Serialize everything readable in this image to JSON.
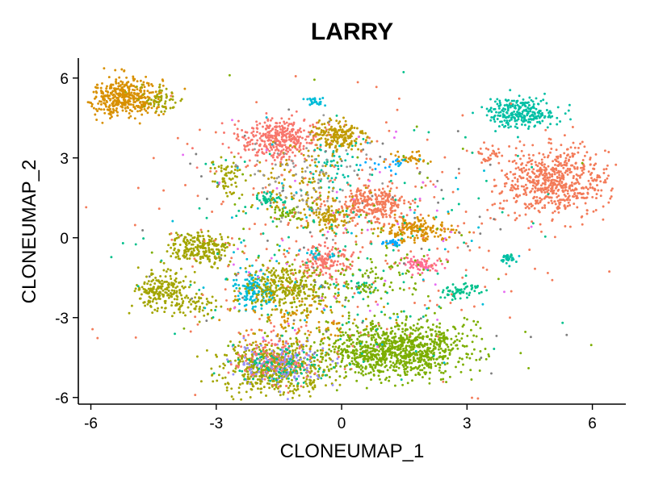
{
  "chart_data": {
    "type": "scatter",
    "title": "LARRY",
    "xlabel": "CLONEUMAP_1",
    "ylabel": "CLONEUMAP_2",
    "xlim": [
      -6.3,
      6.8
    ],
    "ylim": [
      -6.25,
      6.75
    ],
    "xticks": [
      -6,
      -3,
      0,
      3,
      6
    ],
    "yticks": [
      -6,
      -3,
      0,
      3,
      6
    ],
    "xtick_labels": [
      "-6",
      "-3",
      "0",
      "3",
      "6"
    ],
    "ytick_labels": [
      "-6",
      "-3",
      "0",
      "3",
      "6"
    ],
    "grid": false,
    "legend": "none",
    "clusters": [
      {
        "cx": -5.2,
        "cy": 5.3,
        "sx": 0.45,
        "sy": 0.38,
        "n": 420,
        "color": "#D89000"
      },
      {
        "cx": -4.35,
        "cy": 5.2,
        "sx": 0.3,
        "sy": 0.25,
        "n": 60,
        "color": "#A3A500"
      },
      {
        "cx": 4.3,
        "cy": 4.7,
        "sx": 0.4,
        "sy": 0.28,
        "n": 260,
        "color": "#00BFA4"
      },
      {
        "cx": 5.1,
        "cy": 2.1,
        "sx": 0.65,
        "sy": 0.62,
        "n": 620,
        "color": "#F37B59"
      },
      {
        "cx": -1.5,
        "cy": 3.7,
        "sx": 0.5,
        "sy": 0.38,
        "n": 360,
        "color": "#F8766D"
      },
      {
        "cx": -0.1,
        "cy": 3.8,
        "sx": 0.35,
        "sy": 0.33,
        "n": 180,
        "color": "#C09B00"
      },
      {
        "cx": 0.7,
        "cy": 1.25,
        "sx": 0.45,
        "sy": 0.33,
        "n": 280,
        "color": "#F37B59"
      },
      {
        "cx": -0.3,
        "cy": 0.7,
        "sx": 0.3,
        "sy": 0.25,
        "n": 90,
        "color": "#C09B00"
      },
      {
        "cx": 1.8,
        "cy": 0.3,
        "sx": 0.4,
        "sy": 0.22,
        "n": 170,
        "color": "#D89000"
      },
      {
        "cx": 1.3,
        "cy": -4.2,
        "sx": 0.85,
        "sy": 0.52,
        "n": 1000,
        "color": "#7CAE00"
      },
      {
        "cx": -1.6,
        "cy": -4.85,
        "sx": 0.65,
        "sy": 0.45,
        "n": 560,
        "color": "#A3A500"
      },
      {
        "cx": -1.5,
        "cy": -4.7,
        "sx": 0.55,
        "sy": 0.4,
        "n": 150,
        "color": "#9590FF"
      },
      {
        "cx": -1.6,
        "cy": -4.5,
        "sx": 0.5,
        "sy": 0.45,
        "n": 110,
        "color": "#F8766D"
      },
      {
        "cx": -1.5,
        "cy": -4.8,
        "sx": 0.55,
        "sy": 0.35,
        "n": 80,
        "color": "#00C08B"
      },
      {
        "cx": -2.1,
        "cy": -1.9,
        "sx": 0.25,
        "sy": 0.35,
        "n": 140,
        "color": "#00BCD8"
      },
      {
        "cx": -1.3,
        "cy": -1.9,
        "sx": 0.5,
        "sy": 0.5,
        "n": 330,
        "color": "#A3A500"
      },
      {
        "cx": -4.3,
        "cy": -2.0,
        "sx": 0.3,
        "sy": 0.35,
        "n": 200,
        "color": "#A3A500"
      },
      {
        "cx": -3.4,
        "cy": -0.4,
        "sx": 0.35,
        "sy": 0.3,
        "n": 240,
        "color": "#A3A500"
      },
      {
        "cx": -3.5,
        "cy": -2.5,
        "sx": 0.3,
        "sy": 0.25,
        "n": 60,
        "color": "#A3A500"
      },
      {
        "cx": -0.4,
        "cy": -0.9,
        "sx": 0.35,
        "sy": 0.35,
        "n": 140,
        "color": "#F8766D"
      },
      {
        "cx": 1.9,
        "cy": -1.0,
        "sx": 0.25,
        "sy": 0.15,
        "n": 70,
        "color": "#FF6C91"
      },
      {
        "cx": 2.8,
        "cy": -2.0,
        "sx": 0.25,
        "sy": 0.15,
        "n": 55,
        "color": "#00C08B"
      },
      {
        "cx": 3.95,
        "cy": -0.8,
        "sx": 0.1,
        "sy": 0.1,
        "n": 30,
        "color": "#00BFA4"
      },
      {
        "cx": -2.75,
        "cy": 2.25,
        "sx": 0.2,
        "sy": 0.35,
        "n": 60,
        "color": "#A3A500"
      },
      {
        "cx": -1.7,
        "cy": 1.45,
        "sx": 0.2,
        "sy": 0.12,
        "n": 40,
        "color": "#00C08B"
      },
      {
        "cx": -1.3,
        "cy": 0.9,
        "sx": 0.2,
        "sy": 0.15,
        "n": 40,
        "color": "#7CAE00"
      },
      {
        "cx": -0.65,
        "cy": 5.1,
        "sx": 0.12,
        "sy": 0.08,
        "n": 25,
        "color": "#00BCD8"
      },
      {
        "cx": 1.6,
        "cy": 2.95,
        "sx": 0.22,
        "sy": 0.12,
        "n": 35,
        "color": "#D89000"
      },
      {
        "cx": 3.5,
        "cy": 3.1,
        "sx": 0.2,
        "sy": 0.15,
        "n": 30,
        "color": "#F37B59"
      },
      {
        "cx": 1.15,
        "cy": -0.2,
        "sx": 0.15,
        "sy": 0.07,
        "n": 25,
        "color": "#00A9FF"
      },
      {
        "cx": 1.1,
        "cy": 2.7,
        "sx": 0.25,
        "sy": 0.12,
        "n": 18,
        "color": "#00A9FF"
      },
      {
        "cx": -0.6,
        "cy": -0.6,
        "sx": 0.2,
        "sy": 0.1,
        "n": 18,
        "color": "#00BCD8"
      },
      {
        "cx": 0.4,
        "cy": -1.8,
        "sx": 0.2,
        "sy": 0.2,
        "n": 20,
        "color": "#00C08B"
      },
      {
        "cx": -0.3,
        "cy": 2.6,
        "sx": 0.3,
        "sy": 0.6,
        "n": 50,
        "color": "#00BFA4"
      },
      {
        "cx": -0.9,
        "cy": 2.0,
        "sx": 0.7,
        "sy": 0.7,
        "n": 120,
        "color": "#C09B00"
      },
      {
        "cx": -0.9,
        "cy": -3.0,
        "sx": 0.8,
        "sy": 0.6,
        "n": 110,
        "color": "#D89000"
      },
      {
        "cx": 0.6,
        "cy": -1.5,
        "sx": 0.7,
        "sy": 0.5,
        "n": 90,
        "color": "#7CAE00"
      },
      {
        "cx": -1.0,
        "cy": 2.0,
        "sx": 0.8,
        "sy": 0.8,
        "n": 80,
        "color": "#999999"
      },
      {
        "cx": 0.0,
        "cy": 0.0,
        "sx": 2.6,
        "sy": 2.4,
        "n": 280,
        "color": "#F37B59"
      },
      {
        "cx": 0.0,
        "cy": 0.0,
        "sx": 2.4,
        "sy": 2.4,
        "n": 150,
        "color": "#00C08B"
      },
      {
        "cx": 0.0,
        "cy": -0.5,
        "sx": 2.2,
        "sy": 2.2,
        "n": 100,
        "color": "#7CAE00"
      },
      {
        "cx": 0.0,
        "cy": 0.0,
        "sx": 2.4,
        "sy": 2.4,
        "n": 70,
        "color": "#7F7F7F"
      },
      {
        "cx": 0.0,
        "cy": 0.0,
        "sx": 2.0,
        "sy": 2.0,
        "n": 50,
        "color": "#E76BF3"
      },
      {
        "cx": 0.0,
        "cy": 0.0,
        "sx": 2.0,
        "sy": 2.0,
        "n": 50,
        "color": "#00BCD8"
      }
    ]
  }
}
